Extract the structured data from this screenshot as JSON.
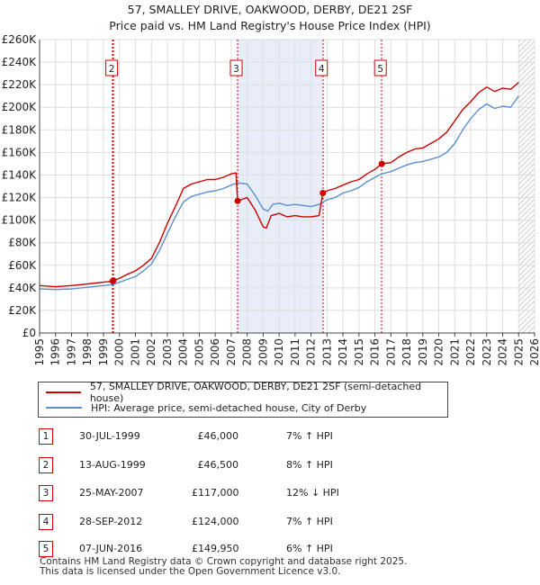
{
  "title_line1": "57, SMALLEY DRIVE, OAKWOOD, DERBY, DE21 2SF",
  "title_line2": "Price paid vs. HM Land Registry's House Price Index (HPI)",
  "legend": {
    "property_label": "57, SMALLEY DRIVE, OAKWOOD, DERBY, DE21 2SF (semi-detached house)",
    "hpi_label": "HPI: Average price, semi-detached house, City of Derby"
  },
  "colors": {
    "property": "#cc0000",
    "hpi": "#5b8fd0",
    "shade": "#e8eef9",
    "marker": "#cc0000"
  },
  "sales": [
    {
      "num": "1",
      "date": "30-JUL-1999",
      "price": "£46,000",
      "hpi": "7% ↑ HPI"
    },
    {
      "num": "2",
      "date": "13-AUG-1999",
      "price": "£46,500",
      "hpi": "8% ↑ HPI"
    },
    {
      "num": "3",
      "date": "25-MAY-2007",
      "price": "£117,000",
      "hpi": "12% ↓ HPI"
    },
    {
      "num": "4",
      "date": "28-SEP-2012",
      "price": "£124,000",
      "hpi": "7% ↑ HPI"
    },
    {
      "num": "5",
      "date": "07-JUN-2016",
      "price": "£149,950",
      "hpi": "6% ↑ HPI"
    }
  ],
  "footer_line1": "Contains HM Land Registry data © Crown copyright and database right 2025.",
  "footer_line2": "This data is licensed under the Open Government Licence v3.0.",
  "chart_data": {
    "type": "line",
    "title": "57, SMALLEY DRIVE, OAKWOOD, DERBY, DE21 2SF",
    "subtitle": "Price paid vs. HM Land Registry's House Price Index (HPI)",
    "xlabel": "",
    "ylabel": "",
    "xlim": [
      1995,
      2026
    ],
    "ylim": [
      0,
      260000
    ],
    "x_ticks": [
      1995,
      1996,
      1997,
      1998,
      1999,
      2000,
      2001,
      2002,
      2003,
      2004,
      2005,
      2006,
      2007,
      2008,
      2009,
      2010,
      2011,
      2012,
      2013,
      2014,
      2015,
      2016,
      2017,
      2018,
      2019,
      2020,
      2021,
      2022,
      2023,
      2024,
      2025,
      2026
    ],
    "y_ticks": [
      0,
      20000,
      40000,
      60000,
      80000,
      100000,
      120000,
      140000,
      160000,
      180000,
      200000,
      220000,
      240000,
      260000
    ],
    "y_tick_labels": [
      "£0",
      "£20K",
      "£40K",
      "£60K",
      "£80K",
      "£100K",
      "£120K",
      "£140K",
      "£160K",
      "£180K",
      "£200K",
      "£220K",
      "£240K",
      "£260K"
    ],
    "grid": true,
    "series": [
      {
        "name": "57, SMALLEY DRIVE, OAKWOOD, DERBY, DE21 2SF (semi-detached house)",
        "x": [
          1995.0,
          1996.0,
          1997.0,
          1998.0,
          1999.0,
          1999.58,
          1999.62,
          2000.0,
          2000.5,
          2001.0,
          2001.5,
          2002.0,
          2002.5,
          2003.0,
          2003.5,
          2004.0,
          2004.5,
          2005.0,
          2005.5,
          2006.0,
          2006.5,
          2007.0,
          2007.3,
          2007.4,
          2008.0,
          2008.5,
          2009.0,
          2009.2,
          2009.5,
          2010.0,
          2010.5,
          2011.0,
          2011.5,
          2012.0,
          2012.5,
          2012.74,
          2013.0,
          2013.5,
          2014.0,
          2014.5,
          2015.0,
          2015.5,
          2016.0,
          2016.43,
          2017.0,
          2017.5,
          2018.0,
          2018.5,
          2019.0,
          2019.5,
          2020.0,
          2020.5,
          2021.0,
          2021.5,
          2022.0,
          2022.5,
          2023.0,
          2023.5,
          2024.0,
          2024.5,
          2025.0
        ],
        "values": [
          42000,
          41000,
          42000,
          43500,
          45000,
          46000,
          46500,
          48500,
          52000,
          55000,
          60000,
          66000,
          80000,
          97000,
          112000,
          128000,
          132000,
          134000,
          136000,
          136000,
          138000,
          141000,
          142000,
          117000,
          120000,
          109000,
          94000,
          93000,
          104000,
          106000,
          103000,
          104000,
          103000,
          103000,
          104000,
          124000,
          126000,
          128000,
          131000,
          134000,
          136000,
          141000,
          145000,
          149950,
          151000,
          156000,
          160000,
          163000,
          164000,
          168000,
          172000,
          178000,
          188000,
          198000,
          205000,
          213000,
          218000,
          214000,
          217000,
          216000,
          222000
        ]
      },
      {
        "name": "HPI: Average price, semi-detached house, City of Derby",
        "x": [
          1995.0,
          1996.0,
          1997.0,
          1998.0,
          1999.0,
          1999.6,
          2000.0,
          2000.5,
          2001.0,
          2001.5,
          2002.0,
          2002.5,
          2003.0,
          2003.5,
          2004.0,
          2004.5,
          2005.0,
          2005.5,
          2006.0,
          2006.5,
          2007.0,
          2007.4,
          2008.0,
          2008.5,
          2009.0,
          2009.3,
          2009.6,
          2010.0,
          2010.5,
          2011.0,
          2011.5,
          2012.0,
          2012.5,
          2012.74,
          2013.0,
          2013.5,
          2014.0,
          2014.5,
          2015.0,
          2015.5,
          2016.0,
          2016.43,
          2017.0,
          2017.5,
          2018.0,
          2018.5,
          2019.0,
          2019.5,
          2020.0,
          2020.5,
          2021.0,
          2021.5,
          2022.0,
          2022.5,
          2023.0,
          2023.5,
          2024.0,
          2024.5,
          2025.0
        ],
        "values": [
          39000,
          38500,
          39000,
          40500,
          42000,
          43000,
          45000,
          47500,
          50000,
          55000,
          61000,
          73000,
          88000,
          103000,
          116000,
          121000,
          123000,
          125000,
          126000,
          128000,
          131000,
          133000,
          132000,
          122000,
          110000,
          108000,
          114000,
          115000,
          113000,
          114000,
          113000,
          112000,
          114000,
          116000,
          118000,
          120000,
          124000,
          126000,
          129000,
          134000,
          138000,
          141000,
          143000,
          146000,
          149000,
          151000,
          152000,
          154000,
          156000,
          160000,
          168000,
          180000,
          190000,
          198000,
          203000,
          199000,
          201000,
          200000,
          210000
        ]
      }
    ],
    "markers": [
      {
        "label": "1",
        "x": 1999.58,
        "value": 46000
      },
      {
        "label": "2",
        "x": 1999.62,
        "value": 46500
      },
      {
        "label": "3",
        "x": 2007.4,
        "value": 117000
      },
      {
        "label": "4",
        "x": 2012.74,
        "value": 124000
      },
      {
        "label": "5",
        "x": 2016.43,
        "value": 149950
      }
    ],
    "marker_boxes": [
      {
        "label": "2",
        "x": 1999.6
      },
      {
        "label": "3",
        "x": 2007.4
      },
      {
        "label": "4",
        "x": 2012.74
      },
      {
        "label": "5",
        "x": 2016.43
      }
    ],
    "shaded_ranges": [
      [
        2007.4,
        2012.74
      ],
      [
        2016.43,
        2016.43
      ]
    ],
    "future_hatch_from": 2025.0
  }
}
